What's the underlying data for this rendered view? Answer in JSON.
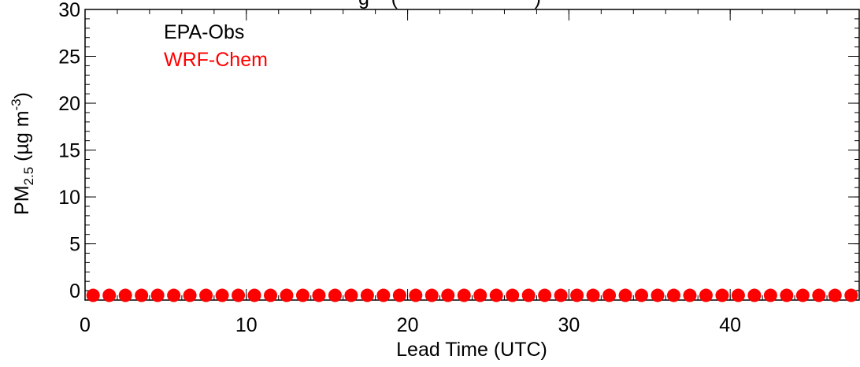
{
  "chart_data": {
    "type": "scatter",
    "title": "",
    "title_visible_fragment": "g    (                         )",
    "xlabel": "Lead Time (UTC)",
    "ylabel": {
      "prefix": "PM",
      "subscript": "2.5",
      "middle": " (µg m",
      "superscript": "-3",
      "suffix": ")"
    },
    "xlim": [
      0,
      48
    ],
    "ylim": [
      -1,
      30
    ],
    "x_ticks": [
      0,
      10,
      20,
      30,
      40
    ],
    "y_ticks": [
      0,
      5,
      10,
      15,
      20,
      25,
      30
    ],
    "x_minor_step": 2,
    "y_minor_step": 1,
    "grid": false,
    "legend_position": "top-left",
    "series": [
      {
        "name": "EPA-Obs",
        "color": "#000000",
        "x": [],
        "y": []
      },
      {
        "name": "WRF-Chem",
        "color": "#ff0000",
        "marker": "circle",
        "x": [
          0.5,
          1.5,
          2.5,
          3.5,
          4.5,
          5.5,
          6.5,
          7.5,
          8.5,
          9.5,
          10.5,
          11.5,
          12.5,
          13.5,
          14.5,
          15.5,
          16.5,
          17.5,
          18.5,
          19.5,
          20.5,
          21.5,
          22.5,
          23.5,
          24.5,
          25.5,
          26.5,
          27.5,
          28.5,
          29.5,
          30.5,
          31.5,
          32.5,
          33.5,
          34.5,
          35.5,
          36.5,
          37.5,
          38.5,
          39.5,
          40.5,
          41.5,
          42.5,
          43.5,
          44.5,
          45.5,
          46.5,
          47.5
        ],
        "y": [
          -0.5,
          -0.5,
          -0.5,
          -0.5,
          -0.5,
          -0.5,
          -0.5,
          -0.5,
          -0.5,
          -0.5,
          -0.5,
          -0.5,
          -0.5,
          -0.5,
          -0.5,
          -0.5,
          -0.5,
          -0.5,
          -0.5,
          -0.5,
          -0.5,
          -0.5,
          -0.5,
          -0.5,
          -0.5,
          -0.5,
          -0.5,
          -0.5,
          -0.5,
          -0.5,
          -0.5,
          -0.5,
          -0.5,
          -0.5,
          -0.5,
          -0.5,
          -0.5,
          -0.5,
          -0.5,
          -0.5,
          -0.5,
          -0.5,
          -0.5,
          -0.5,
          -0.5,
          -0.5,
          -0.5,
          -0.5
        ]
      }
    ]
  }
}
